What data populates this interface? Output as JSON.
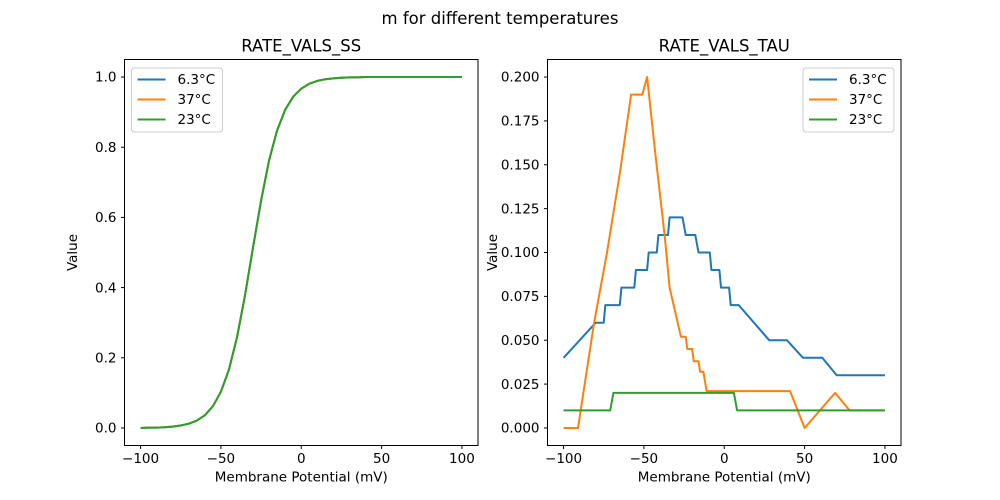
{
  "figure": {
    "suptitle": "m for different temperatures",
    "background": "#ffffff"
  },
  "palette": {
    "blue": "#1f77b4",
    "orange": "#ff7f0e",
    "green": "#2ca02c",
    "spine": "#000000",
    "legend_border": "#cccccc"
  },
  "chart_data": [
    {
      "type": "line",
      "title": "RATE_VALS_SS",
      "xlabel": "Membrane Potential (mV)",
      "ylabel": "Value",
      "xlim": [
        -110,
        110
      ],
      "ylim": [
        -0.05,
        1.05
      ],
      "grid": false,
      "xticks": [
        -100,
        -50,
        0,
        50,
        100
      ],
      "xtick_labels": [
        "−100",
        "−50",
        "0",
        "50",
        "100"
      ],
      "yticks": [
        0.0,
        0.2,
        0.4,
        0.6,
        0.8,
        1.0
      ],
      "ytick_labels": [
        "0.0",
        "0.2",
        "0.4",
        "0.6",
        "0.8",
        "1.0"
      ],
      "legend": {
        "position": "upper-left",
        "entries": [
          {
            "label": "6.3°C",
            "color": "#1f77b4"
          },
          {
            "label": "37°C",
            "color": "#ff7f0e"
          },
          {
            "label": "23°C",
            "color": "#2ca02c"
          }
        ]
      },
      "note": "all three temperature curves coincide; green (23C, drawn last) is visible",
      "shared_points": [
        [
          -100,
          0.0
        ],
        [
          -95,
          0.001
        ],
        [
          -90,
          0.001
        ],
        [
          -85,
          0.002
        ],
        [
          -80,
          0.004
        ],
        [
          -75,
          0.007
        ],
        [
          -70,
          0.012
        ],
        [
          -65,
          0.021
        ],
        [
          -60,
          0.036
        ],
        [
          -55,
          0.062
        ],
        [
          -50,
          0.103
        ],
        [
          -45,
          0.166
        ],
        [
          -40,
          0.258
        ],
        [
          -35,
          0.378
        ],
        [
          -30,
          0.514
        ],
        [
          -25,
          0.648
        ],
        [
          -20,
          0.763
        ],
        [
          -15,
          0.848
        ],
        [
          -10,
          0.907
        ],
        [
          -5,
          0.944
        ],
        [
          0,
          0.967
        ],
        [
          5,
          0.981
        ],
        [
          10,
          0.989
        ],
        [
          15,
          0.994
        ],
        [
          20,
          0.996
        ],
        [
          25,
          0.998
        ],
        [
          30,
          0.999
        ],
        [
          35,
          0.999
        ],
        [
          40,
          1.0
        ],
        [
          45,
          1.0
        ],
        [
          50,
          1.0
        ],
        [
          55,
          1.0
        ],
        [
          60,
          1.0
        ],
        [
          65,
          1.0
        ],
        [
          70,
          1.0
        ],
        [
          75,
          1.0
        ],
        [
          80,
          1.0
        ],
        [
          85,
          1.0
        ],
        [
          90,
          1.0
        ],
        [
          95,
          1.0
        ],
        [
          100,
          1.0
        ]
      ],
      "series": [
        {
          "name": "6.3°C",
          "color": "#1f77b4",
          "points": "shared"
        },
        {
          "name": "37°C",
          "color": "#ff7f0e",
          "points": "shared"
        },
        {
          "name": "23°C",
          "color": "#2ca02c",
          "points": "shared"
        }
      ]
    },
    {
      "type": "line",
      "title": "RATE_VALS_TAU",
      "xlabel": "Membrane Potential (mV)",
      "ylabel": "Value",
      "xlim": [
        -110,
        110
      ],
      "ylim": [
        -0.01,
        0.21
      ],
      "grid": false,
      "xticks": [
        -100,
        -50,
        0,
        50,
        100
      ],
      "xtick_labels": [
        "−100",
        "−50",
        "0",
        "50",
        "100"
      ],
      "yticks": [
        0.0,
        0.025,
        0.05,
        0.075,
        0.1,
        0.125,
        0.15,
        0.175,
        0.2
      ],
      "ytick_labels": [
        "0.000",
        "0.025",
        "0.050",
        "0.075",
        "0.100",
        "0.125",
        "0.150",
        "0.175",
        "0.200"
      ],
      "legend": {
        "position": "upper-right",
        "entries": [
          {
            "label": "6.3°C",
            "color": "#1f77b4"
          },
          {
            "label": "37°C",
            "color": "#ff7f0e"
          },
          {
            "label": "23°C",
            "color": "#2ca02c"
          }
        ]
      },
      "series": [
        {
          "name": "6.3°C",
          "color": "#1f77b4",
          "points": [
            [
              -100,
              0.04
            ],
            [
              -80,
              0.06
            ],
            [
              -75,
              0.06
            ],
            [
              -74,
              0.07
            ],
            [
              -65,
              0.07
            ],
            [
              -64,
              0.08
            ],
            [
              -56,
              0.08
            ],
            [
              -55,
              0.09
            ],
            [
              -48,
              0.09
            ],
            [
              -47,
              0.1
            ],
            [
              -42,
              0.1
            ],
            [
              -41,
              0.11
            ],
            [
              -35,
              0.11
            ],
            [
              -34,
              0.12
            ],
            [
              -26,
              0.12
            ],
            [
              -24,
              0.11
            ],
            [
              -18,
              0.11
            ],
            [
              -16,
              0.1
            ],
            [
              -9,
              0.1
            ],
            [
              -8,
              0.09
            ],
            [
              -3,
              0.09
            ],
            [
              -2,
              0.08
            ],
            [
              3,
              0.08
            ],
            [
              4,
              0.07
            ],
            [
              9,
              0.07
            ],
            [
              28,
              0.05
            ],
            [
              39,
              0.05
            ],
            [
              49,
              0.04
            ],
            [
              61,
              0.04
            ],
            [
              70,
              0.03
            ],
            [
              100,
              0.03
            ]
          ]
        },
        {
          "name": "37°C",
          "color": "#ff7f0e",
          "points": [
            [
              -100,
              0.0
            ],
            [
              -91,
              0.0
            ],
            [
              -81,
              0.06
            ],
            [
              -73,
              0.1
            ],
            [
              -65,
              0.145
            ],
            [
              -58,
              0.19
            ],
            [
              -51,
              0.19
            ],
            [
              -48,
              0.2
            ],
            [
              -43,
              0.157
            ],
            [
              -37,
              0.109
            ],
            [
              -34,
              0.08
            ],
            [
              -27,
              0.052
            ],
            [
              -24,
              0.052
            ],
            [
              -23,
              0.045
            ],
            [
              -20,
              0.045
            ],
            [
              -19,
              0.038
            ],
            [
              -16,
              0.038
            ],
            [
              -15,
              0.032
            ],
            [
              -13,
              0.032
            ],
            [
              -11,
              0.021
            ],
            [
              41,
              0.021
            ],
            [
              50,
              0.0
            ],
            [
              69,
              0.02
            ],
            [
              78,
              0.01
            ],
            [
              100,
              0.01
            ]
          ]
        },
        {
          "name": "23°C",
          "color": "#2ca02c",
          "points": [
            [
              -100,
              0.01
            ],
            [
              -71,
              0.01
            ],
            [
              -69,
              0.02
            ],
            [
              6,
              0.02
            ],
            [
              8,
              0.01
            ],
            [
              100,
              0.01
            ]
          ]
        }
      ]
    }
  ]
}
